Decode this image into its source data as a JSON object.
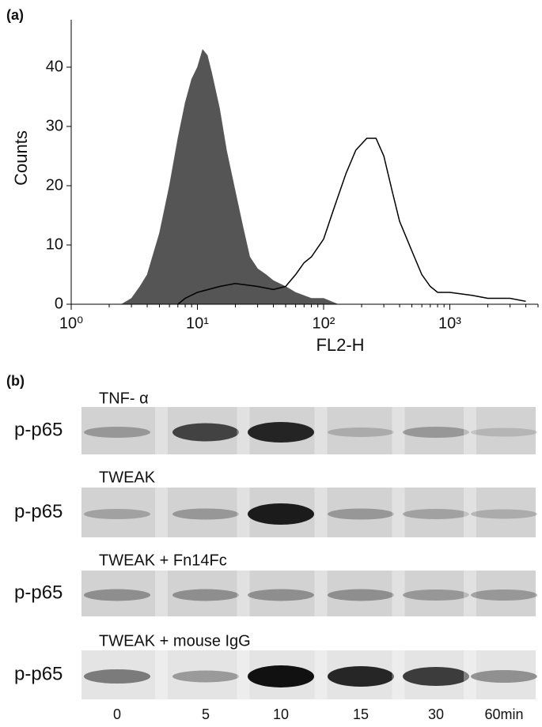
{
  "panel_a": "(a)",
  "panel_b": "(b)",
  "chart_data": {
    "type": "line",
    "xlabel": "FL2-H",
    "ylabel": "Counts",
    "xscale": "log",
    "xlim": [
      1,
      5000
    ],
    "ylim": [
      0,
      48
    ],
    "xticks": [
      {
        "value": 1,
        "label": "10⁰"
      },
      {
        "value": 10,
        "label": "10¹"
      },
      {
        "value": 100,
        "label": "10²"
      },
      {
        "value": 1000,
        "label": "10³"
      }
    ],
    "yticks": [
      0,
      10,
      20,
      30,
      40
    ],
    "series": [
      {
        "color": "#555555",
        "filled": true,
        "x": [
          2.5,
          3,
          3.5,
          4,
          5,
          6,
          7,
          8,
          9,
          10,
          11,
          12,
          13,
          15,
          17,
          20,
          23,
          26,
          30,
          35,
          40,
          50,
          60,
          80,
          100,
          130
        ],
        "values": [
          0,
          1,
          3,
          5,
          12,
          20,
          28,
          34,
          38,
          40,
          43,
          42,
          39,
          33,
          26,
          19,
          13,
          8,
          6,
          5,
          4,
          3,
          2,
          1,
          1,
          0
        ]
      },
      {
        "color": "#000000",
        "filled": false,
        "x": [
          7,
          8,
          10,
          15,
          20,
          30,
          40,
          50,
          60,
          70,
          80,
          100,
          120,
          150,
          180,
          220,
          260,
          300,
          350,
          400,
          500,
          600,
          700,
          800,
          1000,
          1500,
          2000,
          3000,
          4000
        ],
        "values": [
          0,
          1,
          2,
          3,
          3.5,
          3,
          2.5,
          3,
          5,
          7,
          8,
          11,
          16,
          22,
          26,
          28,
          28,
          25,
          19,
          14,
          9,
          5,
          3,
          2,
          2,
          1.5,
          1,
          1,
          0.5
        ]
      }
    ]
  },
  "blot": {
    "protein": "p-p65",
    "rows": [
      "TNF- α",
      "TWEAK",
      "TWEAK + Fn14Fc",
      "TWEAK + mouse IgG"
    ],
    "lanes": [
      "0",
      "5",
      "10",
      "15",
      "30",
      "60min"
    ]
  }
}
